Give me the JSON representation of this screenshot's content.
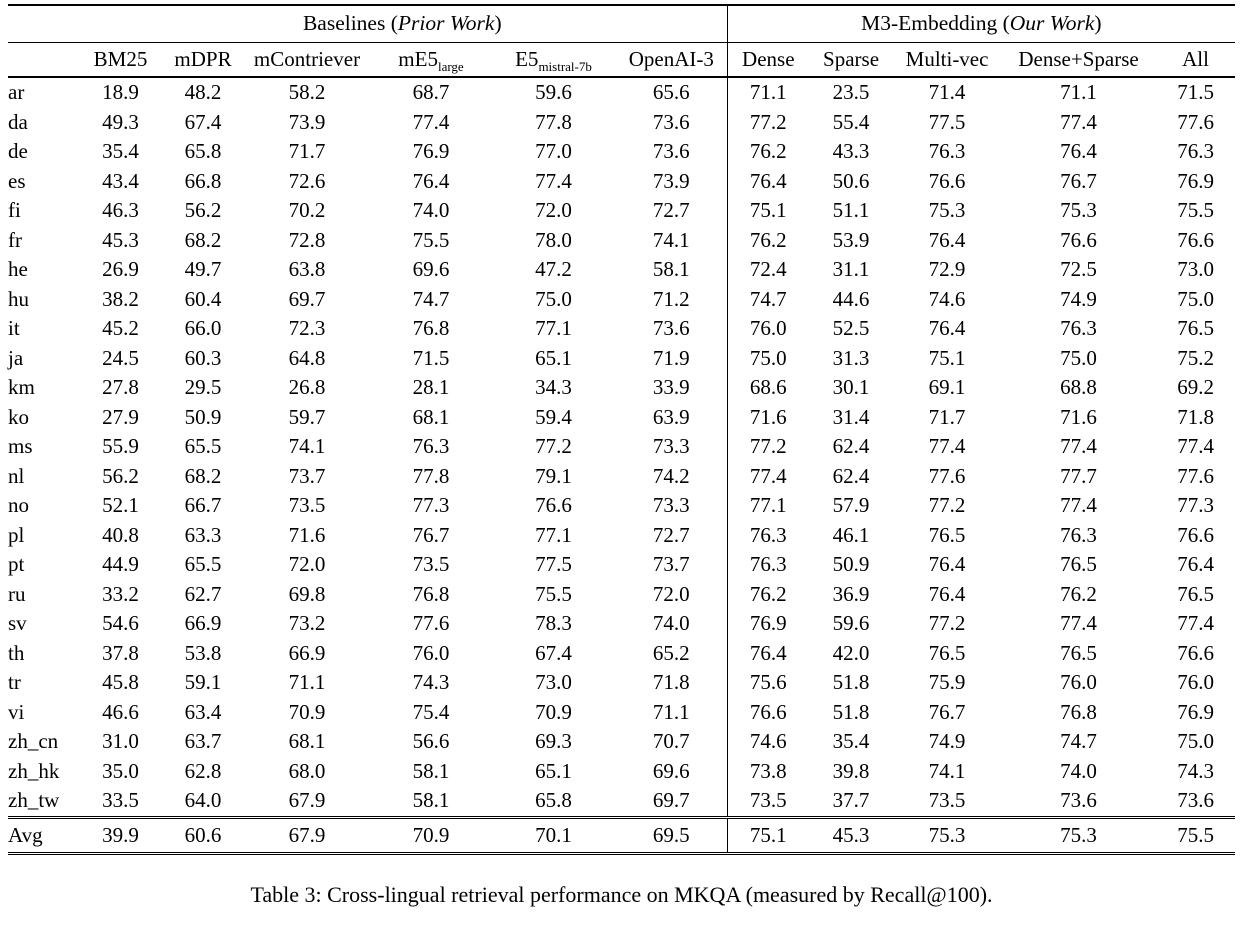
{
  "header": {
    "group_left_prefix": "Baselines (",
    "group_left_italic": "Prior Work",
    "group_left_suffix": ")",
    "group_right_prefix": "M3-Embedding (",
    "group_right_italic": "Our Work",
    "group_right_suffix": ")",
    "columns": [
      {
        "main": "BM25",
        "sub": ""
      },
      {
        "main": "mDPR",
        "sub": ""
      },
      {
        "main": "mContriever",
        "sub": ""
      },
      {
        "main": "mE5",
        "sub": "large"
      },
      {
        "main": "E5",
        "sub": "mistral-7b"
      },
      {
        "main": "OpenAI-3",
        "sub": ""
      },
      {
        "main": "Dense",
        "sub": ""
      },
      {
        "main": "Sparse",
        "sub": ""
      },
      {
        "main": "Multi-vec",
        "sub": ""
      },
      {
        "main": "Dense+Sparse",
        "sub": ""
      },
      {
        "main": "All",
        "sub": ""
      }
    ]
  },
  "rows": [
    {
      "lang": "ar",
      "values": [
        "18.9",
        "48.2",
        "58.2",
        "68.7",
        "59.6",
        "65.6",
        "71.1",
        "23.5",
        "71.4",
        "71.1",
        "71.5"
      ],
      "bold": [
        10
      ]
    },
    {
      "lang": "da",
      "values": [
        "49.3",
        "67.4",
        "73.9",
        "77.4",
        "77.8",
        "73.6",
        "77.2",
        "55.4",
        "77.5",
        "77.4",
        "77.6"
      ],
      "bold": [
        4
      ]
    },
    {
      "lang": "de",
      "values": [
        "35.4",
        "65.8",
        "71.7",
        "76.9",
        "77.0",
        "73.6",
        "76.2",
        "43.3",
        "76.3",
        "76.4",
        "76.3"
      ],
      "bold": [
        4
      ]
    },
    {
      "lang": "es",
      "values": [
        "43.4",
        "66.8",
        "72.6",
        "76.4",
        "77.4",
        "73.9",
        "76.4",
        "50.6",
        "76.6",
        "76.7",
        "76.9"
      ],
      "bold": [
        4
      ]
    },
    {
      "lang": "fi",
      "values": [
        "46.3",
        "56.2",
        "70.2",
        "74.0",
        "72.0",
        "72.7",
        "75.1",
        "51.1",
        "75.3",
        "75.3",
        "75.5"
      ],
      "bold": [
        10
      ]
    },
    {
      "lang": "fr",
      "values": [
        "45.3",
        "68.2",
        "72.8",
        "75.5",
        "78.0",
        "74.1",
        "76.2",
        "53.9",
        "76.4",
        "76.6",
        "76.6"
      ],
      "bold": [
        4
      ]
    },
    {
      "lang": "he",
      "values": [
        "26.9",
        "49.7",
        "63.8",
        "69.6",
        "47.2",
        "58.1",
        "72.4",
        "31.1",
        "72.9",
        "72.5",
        "73.0"
      ],
      "bold": [
        10
      ]
    },
    {
      "lang": "hu",
      "values": [
        "38.2",
        "60.4",
        "69.7",
        "74.7",
        "75.0",
        "71.2",
        "74.7",
        "44.6",
        "74.6",
        "74.9",
        "75.0"
      ],
      "bold": [
        4,
        10
      ]
    },
    {
      "lang": "it",
      "values": [
        "45.2",
        "66.0",
        "72.3",
        "76.8",
        "77.1",
        "73.6",
        "76.0",
        "52.5",
        "76.4",
        "76.3",
        "76.5"
      ],
      "bold": [
        4
      ]
    },
    {
      "lang": "ja",
      "values": [
        "24.5",
        "60.3",
        "64.8",
        "71.5",
        "65.1",
        "71.9",
        "75.0",
        "31.3",
        "75.1",
        "75.0",
        "75.2"
      ],
      "bold": [
        10
      ]
    },
    {
      "lang": "km",
      "values": [
        "27.8",
        "29.5",
        "26.8",
        "28.1",
        "34.3",
        "33.9",
        "68.6",
        "30.1",
        "69.1",
        "68.8",
        "69.2"
      ],
      "bold": [
        10
      ]
    },
    {
      "lang": "ko",
      "values": [
        "27.9",
        "50.9",
        "59.7",
        "68.1",
        "59.4",
        "63.9",
        "71.6",
        "31.4",
        "71.7",
        "71.6",
        "71.8"
      ],
      "bold": [
        10
      ]
    },
    {
      "lang": "ms",
      "values": [
        "55.9",
        "65.5",
        "74.1",
        "76.3",
        "77.2",
        "73.3",
        "77.2",
        "62.4",
        "77.4",
        "77.4",
        "77.4"
      ],
      "bold": [
        8,
        9,
        10
      ]
    },
    {
      "lang": "nl",
      "values": [
        "56.2",
        "68.2",
        "73.7",
        "77.8",
        "79.1",
        "74.2",
        "77.4",
        "62.4",
        "77.6",
        "77.7",
        "77.6"
      ],
      "bold": [
        4
      ]
    },
    {
      "lang": "no",
      "values": [
        "52.1",
        "66.7",
        "73.5",
        "77.3",
        "76.6",
        "73.3",
        "77.1",
        "57.9",
        "77.2",
        "77.4",
        "77.3"
      ],
      "bold": [
        9
      ]
    },
    {
      "lang": "pl",
      "values": [
        "40.8",
        "63.3",
        "71.6",
        "76.7",
        "77.1",
        "72.7",
        "76.3",
        "46.1",
        "76.5",
        "76.3",
        "76.6"
      ],
      "bold": [
        4
      ]
    },
    {
      "lang": "pt",
      "values": [
        "44.9",
        "65.5",
        "72.0",
        "73.5",
        "77.5",
        "73.7",
        "76.3",
        "50.9",
        "76.4",
        "76.5",
        "76.4"
      ],
      "bold": [
        4
      ]
    },
    {
      "lang": "ru",
      "values": [
        "33.2",
        "62.7",
        "69.8",
        "76.8",
        "75.5",
        "72.0",
        "76.2",
        "36.9",
        "76.4",
        "76.2",
        "76.5"
      ],
      "bold": [
        3
      ]
    },
    {
      "lang": "sv",
      "values": [
        "54.6",
        "66.9",
        "73.2",
        "77.6",
        "78.3",
        "74.0",
        "76.9",
        "59.6",
        "77.2",
        "77.4",
        "77.4"
      ],
      "bold": [
        4
      ]
    },
    {
      "lang": "th",
      "values": [
        "37.8",
        "53.8",
        "66.9",
        "76.0",
        "67.4",
        "65.2",
        "76.4",
        "42.0",
        "76.5",
        "76.5",
        "76.6"
      ],
      "bold": [
        10
      ]
    },
    {
      "lang": "tr",
      "values": [
        "45.8",
        "59.1",
        "71.1",
        "74.3",
        "73.0",
        "71.8",
        "75.6",
        "51.8",
        "75.9",
        "76.0",
        "76.0"
      ],
      "bold": [
        9,
        10
      ]
    },
    {
      "lang": "vi",
      "values": [
        "46.6",
        "63.4",
        "70.9",
        "75.4",
        "70.9",
        "71.1",
        "76.6",
        "51.8",
        "76.7",
        "76.8",
        "76.9"
      ],
      "bold": [
        10
      ]
    },
    {
      "lang": "zh_cn",
      "values": [
        "31.0",
        "63.7",
        "68.1",
        "56.6",
        "69.3",
        "70.7",
        "74.6",
        "35.4",
        "74.9",
        "74.7",
        "75.0"
      ],
      "bold": [
        10
      ]
    },
    {
      "lang": "zh_hk",
      "values": [
        "35.0",
        "62.8",
        "68.0",
        "58.1",
        "65.1",
        "69.6",
        "73.8",
        "39.8",
        "74.1",
        "74.0",
        "74.3"
      ],
      "bold": [
        10
      ]
    },
    {
      "lang": "zh_tw",
      "values": [
        "33.5",
        "64.0",
        "67.9",
        "58.1",
        "65.8",
        "69.7",
        "73.5",
        "37.7",
        "73.5",
        "73.6",
        "73.6"
      ],
      "bold": [
        9,
        10
      ]
    },
    {
      "lang": "Avg",
      "values": [
        "39.9",
        "60.6",
        "67.9",
        "70.9",
        "70.1",
        "69.5",
        "75.1",
        "45.3",
        "75.3",
        "75.3",
        "75.5"
      ],
      "bold": [
        10
      ],
      "avg": true
    }
  ],
  "caption": "Table 3: Cross-lingual retrieval performance on MKQA (measured by Recall@100)."
}
